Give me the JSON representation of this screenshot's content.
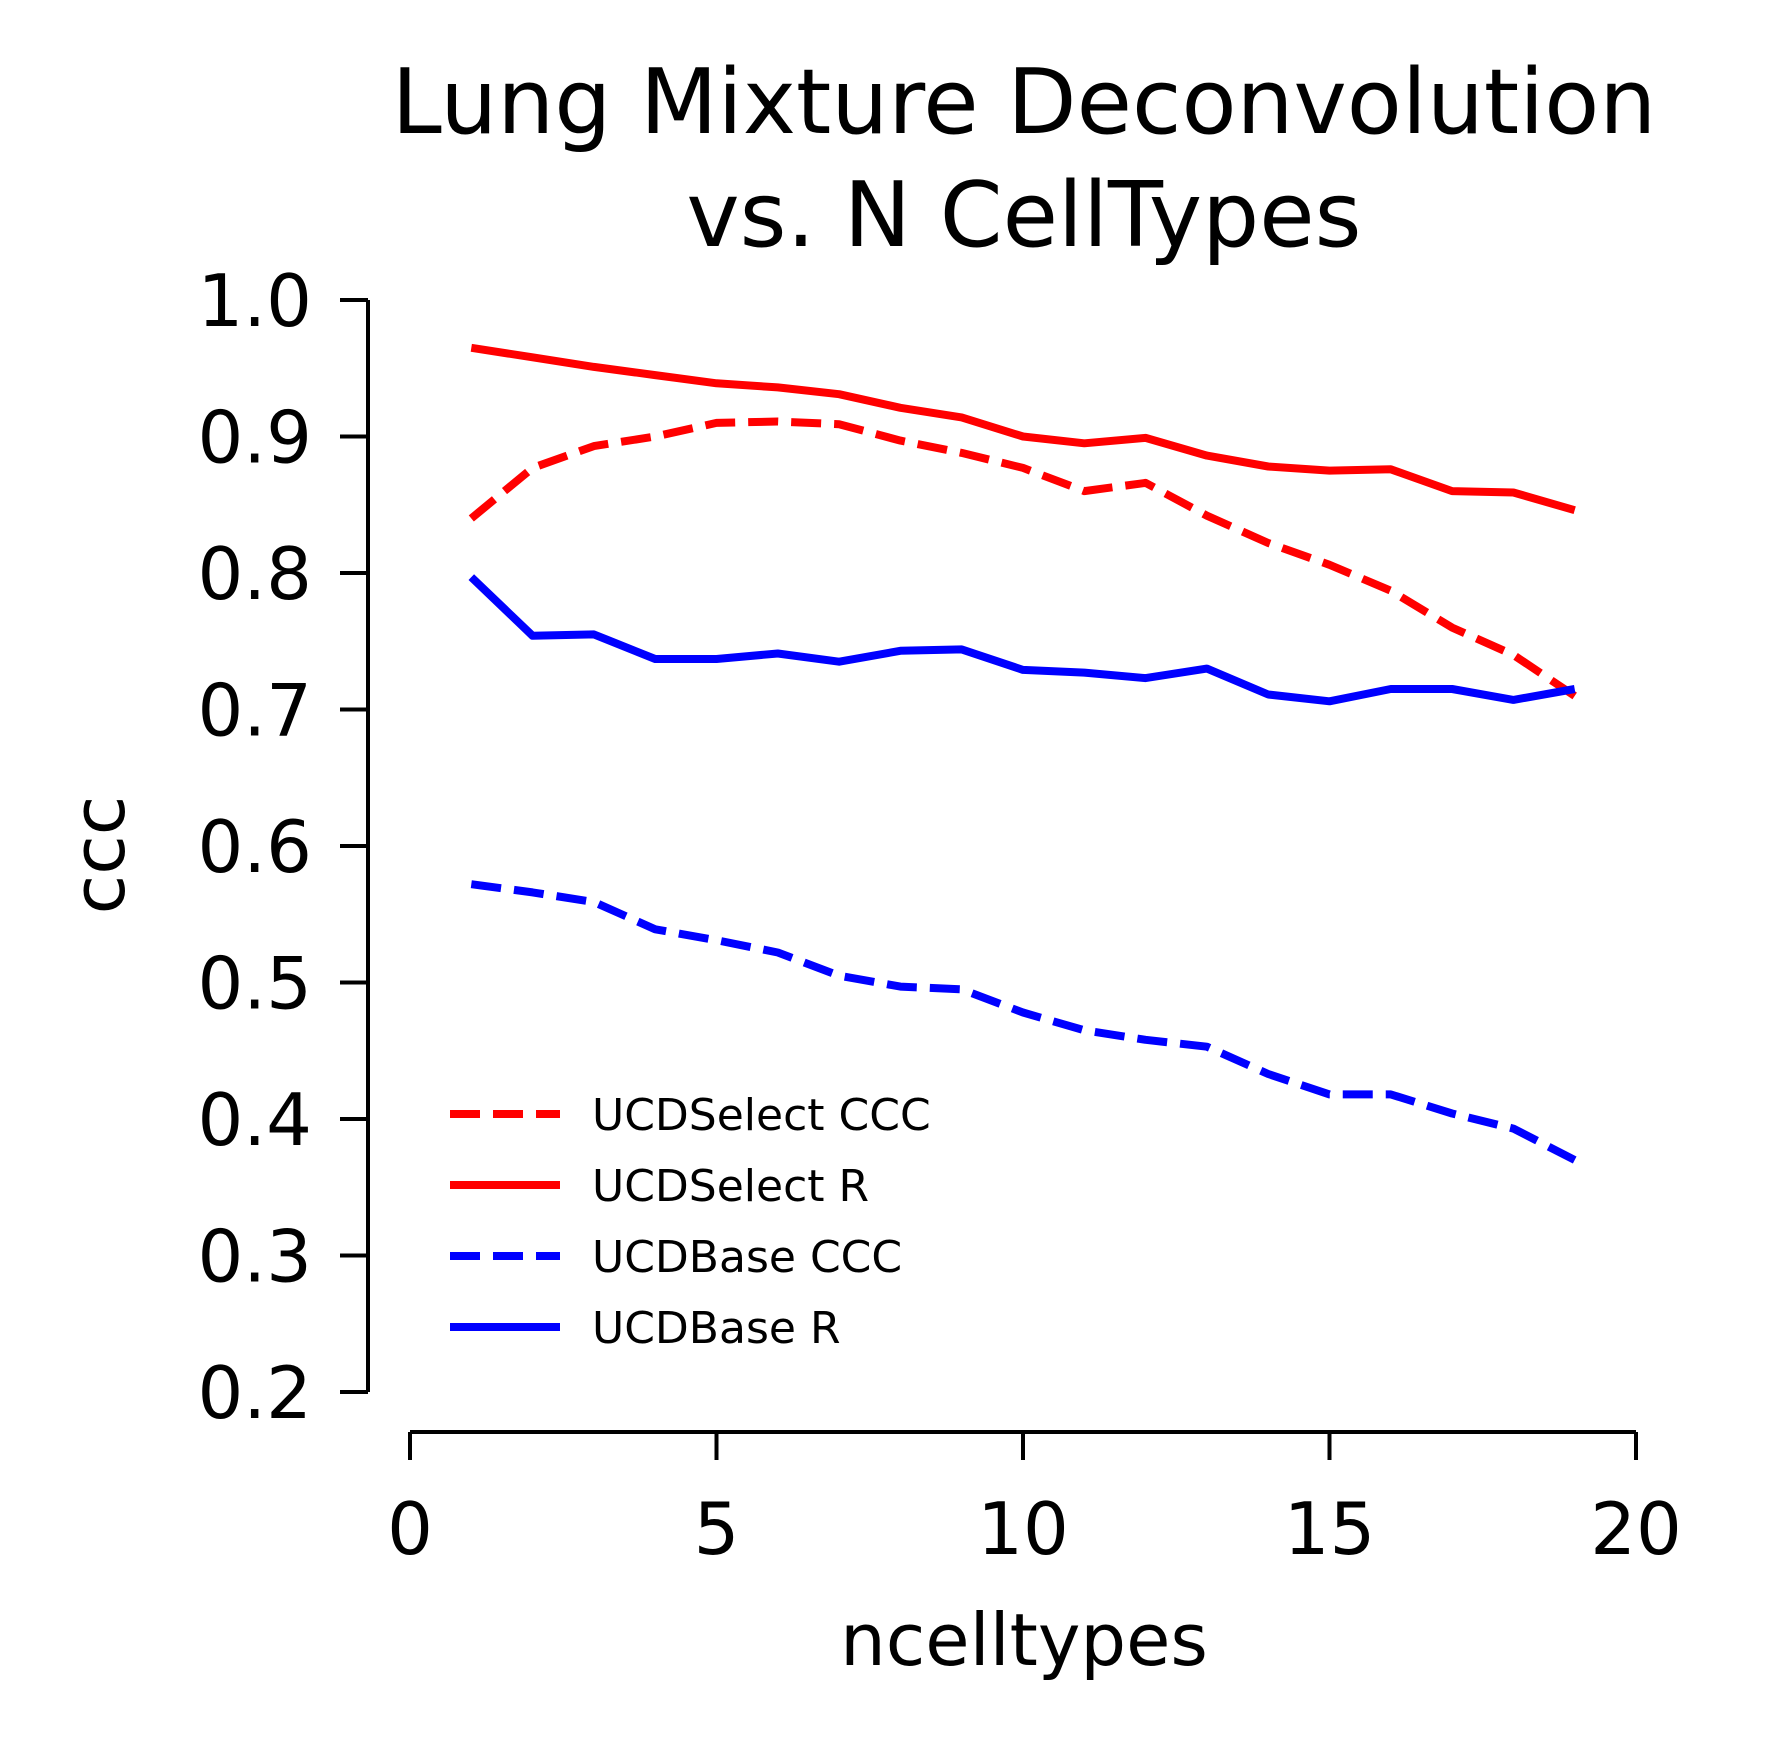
{
  "chart_data": {
    "type": "line",
    "title": [
      "Lung Mixture Deconvolution",
      "vs. N CellTypes"
    ],
    "xlabel": "ncelltypes",
    "ylabel": "ccc",
    "xlim": [
      0,
      20
    ],
    "ylim": [
      0.2,
      1.0
    ],
    "xticks": [
      0,
      5,
      10,
      15,
      20
    ],
    "yticks": [
      0.2,
      0.3,
      0.4,
      0.5,
      0.6,
      0.7,
      0.8,
      0.9,
      1.0
    ],
    "xtick_labels": [
      "0",
      "5",
      "10",
      "15",
      "20"
    ],
    "ytick_labels": [
      "0.2",
      "0.3",
      "0.4",
      "0.5",
      "0.6",
      "0.7",
      "0.8",
      "0.9",
      "1.0"
    ],
    "grid": false,
    "legend_position": "lower-left",
    "x": [
      1,
      2,
      3,
      4,
      5,
      6,
      7,
      8,
      9,
      10,
      11,
      12,
      13,
      14,
      15,
      16,
      17,
      18,
      19
    ],
    "series": [
      {
        "name": "UCDSelect CCC",
        "color": "#ff0000",
        "style": "dashed",
        "values": [
          0.84,
          0.877,
          0.893,
          0.9,
          0.91,
          0.911,
          0.909,
          0.897,
          0.888,
          0.877,
          0.86,
          0.866,
          0.842,
          0.822,
          0.806,
          0.787,
          0.76,
          0.74,
          0.71
        ]
      },
      {
        "name": "UCDSelect R",
        "color": "#ff0000",
        "style": "solid",
        "values": [
          0.965,
          0.958,
          0.951,
          0.945,
          0.939,
          0.936,
          0.931,
          0.921,
          0.914,
          0.9,
          0.895,
          0.899,
          0.886,
          0.878,
          0.875,
          0.876,
          0.86,
          0.859,
          0.846
        ]
      },
      {
        "name": "UCDBase CCC",
        "color": "#0000ff",
        "style": "dashed",
        "values": [
          0.572,
          0.566,
          0.559,
          0.539,
          0.531,
          0.522,
          0.505,
          0.497,
          0.495,
          0.478,
          0.465,
          0.458,
          0.453,
          0.433,
          0.418,
          0.418,
          0.404,
          0.393,
          0.37
        ]
      },
      {
        "name": "UCDBase R",
        "color": "#0000ff",
        "style": "solid",
        "values": [
          0.797,
          0.754,
          0.755,
          0.737,
          0.737,
          0.741,
          0.735,
          0.743,
          0.744,
          0.729,
          0.727,
          0.723,
          0.73,
          0.711,
          0.706,
          0.715,
          0.715,
          0.707,
          0.715
        ]
      }
    ]
  }
}
